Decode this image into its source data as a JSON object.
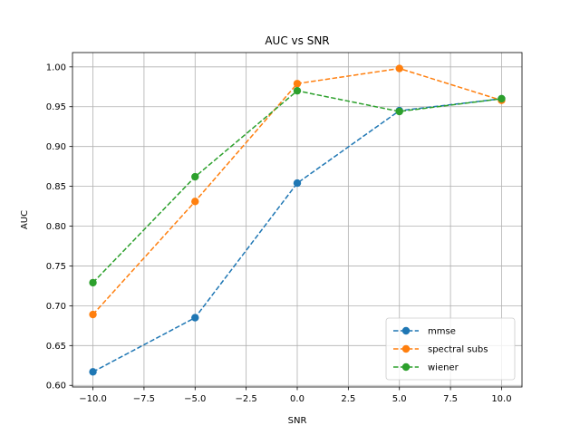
{
  "chart_data": {
    "type": "line",
    "title": "AUC vs SNR",
    "xlabel": "SNR",
    "ylabel": "AUC",
    "x": [
      -10,
      -5,
      0,
      5,
      10
    ],
    "xlim": [
      -11,
      11
    ],
    "ylim": [
      0.598,
      1.018
    ],
    "xticks": [
      -10,
      -7.5,
      -5,
      -2.5,
      0,
      2.5,
      5,
      7.5,
      10
    ],
    "xtick_labels": [
      "−10.0",
      "−7.5",
      "−5.0",
      "−2.5",
      "0.0",
      "2.5",
      "5.0",
      "7.5",
      "10.0"
    ],
    "yticks": [
      0.6,
      0.65,
      0.7,
      0.75,
      0.8,
      0.85,
      0.9,
      0.95,
      1.0
    ],
    "ytick_labels": [
      "0.60",
      "0.65",
      "0.70",
      "0.75",
      "0.80",
      "0.85",
      "0.90",
      "0.95",
      "1.00"
    ],
    "grid": true,
    "legend_position": "lower-right",
    "line_style": "dashed",
    "marker": "circle",
    "series": [
      {
        "name": "mmse",
        "color": "#1f77b4",
        "values": [
          0.617,
          0.685,
          0.854,
          0.945,
          0.96
        ]
      },
      {
        "name": "spectral subs",
        "color": "#ff7f0e",
        "values": [
          0.689,
          0.831,
          0.979,
          0.998,
          0.958
        ]
      },
      {
        "name": "wiener",
        "color": "#2ca02c",
        "values": [
          0.729,
          0.862,
          0.97,
          0.944,
          0.96
        ]
      }
    ]
  }
}
